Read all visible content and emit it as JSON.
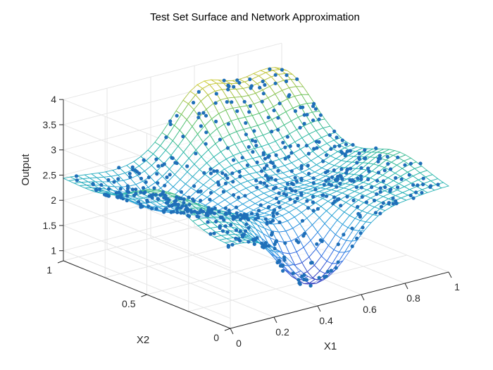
{
  "chart_data": {
    "type": "surface3d",
    "title": "Test Set Surface and Network Approximation",
    "xlabel": "X1",
    "ylabel": "X2",
    "zlabel": "Output",
    "xlim": [
      0,
      1
    ],
    "ylim": [
      0,
      1
    ],
    "zlim": [
      0.8,
      4.0
    ],
    "xticks": [
      {
        "value": 0,
        "label": "0"
      },
      {
        "value": 0.2,
        "label": "0.2"
      },
      {
        "value": 0.4,
        "label": "0.4"
      },
      {
        "value": 0.6,
        "label": "0.6"
      },
      {
        "value": 0.8,
        "label": "0.8"
      },
      {
        "value": 1,
        "label": "1"
      }
    ],
    "yticks": [
      {
        "value": 0,
        "label": "0"
      },
      {
        "value": 0.5,
        "label": "0.5"
      },
      {
        "value": 1,
        "label": "1"
      }
    ],
    "zticks": [
      {
        "value": 1,
        "label": "1"
      },
      {
        "value": 1.5,
        "label": "1.5"
      },
      {
        "value": 2,
        "label": "2"
      },
      {
        "value": 2.5,
        "label": "2.5"
      },
      {
        "value": 3,
        "label": "3"
      },
      {
        "value": 3.5,
        "label": "3.5"
      },
      {
        "value": 4,
        "label": "4"
      }
    ],
    "grid": true,
    "colormap": "parula",
    "colors": {
      "colormap_low": "#3e26a8",
      "colormap_mid1": "#2f8ee6",
      "colormap_mid2": "#2ab7b0",
      "colormap_mid3": "#8ac33f",
      "colormap_high": "#f9e21c",
      "scatter_points": "#1f6fb8",
      "grid_lines": "#e6e6e6",
      "axis_lines": "#262626"
    },
    "series": [
      {
        "kind": "surface-mesh",
        "grid_resolution": 31
      },
      {
        "kind": "scatter",
        "marker": "filled-dot",
        "point_count": 600
      }
    ]
  }
}
